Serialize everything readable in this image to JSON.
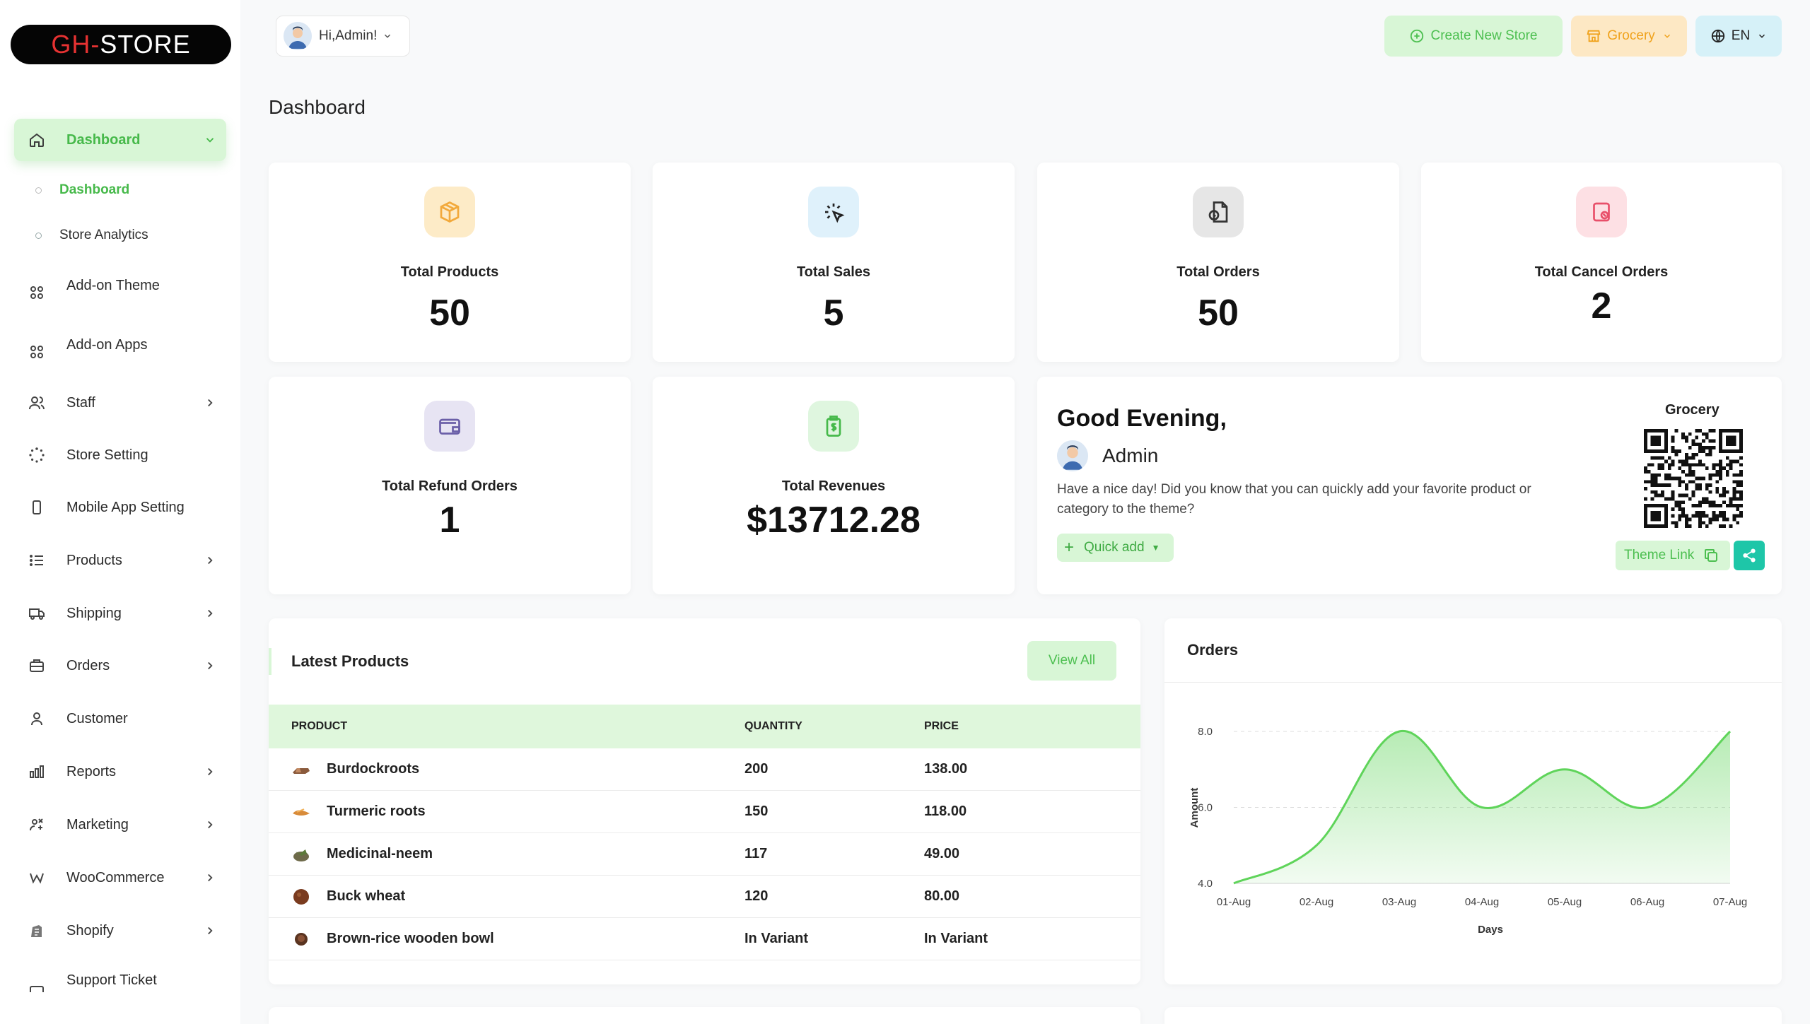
{
  "logo": {
    "part1": "GH-",
    "part2": "STORE"
  },
  "sidebar": {
    "active": "Dashboard",
    "sub_items": [
      {
        "label": "Dashboard",
        "active": true
      },
      {
        "label": "Store Analytics",
        "active": false
      }
    ],
    "items": [
      {
        "label": "Dashboard",
        "icon": "home-icon"
      },
      {
        "label": "Add-on Theme",
        "icon": "grid-icon"
      },
      {
        "label": "Add-on Apps",
        "icon": "grid-icon"
      },
      {
        "label": "Staff",
        "icon": "users-icon"
      },
      {
        "label": "Store Setting",
        "icon": "loader-icon"
      },
      {
        "label": "Mobile App Setting",
        "icon": "mobile-icon"
      },
      {
        "label": "Products",
        "icon": "list-icon"
      },
      {
        "label": "Shipping",
        "icon": "truck-icon"
      },
      {
        "label": "Orders",
        "icon": "briefcase-icon"
      },
      {
        "label": "Customer",
        "icon": "user-icon"
      },
      {
        "label": "Reports",
        "icon": "bar-chart-icon"
      },
      {
        "label": "Marketing",
        "icon": "marketing-icon"
      },
      {
        "label": "WooCommerce",
        "icon": "woocommerce-icon"
      },
      {
        "label": "Shopify",
        "icon": "shopify-icon"
      },
      {
        "label": "Support Ticket",
        "icon": "ticket-icon"
      }
    ]
  },
  "header": {
    "greeting": "Hi,Admin!",
    "create_store": "Create New Store",
    "store_select": "Grocery",
    "language": "EN"
  },
  "page": {
    "title": "Dashboard"
  },
  "stats": [
    {
      "label": "Total Products",
      "value": "50",
      "icon": "box-icon",
      "color": "#fdebc7"
    },
    {
      "label": "Total Sales",
      "value": "5",
      "icon": "click-icon",
      "color": "#dff1fb"
    },
    {
      "label": "Total Orders",
      "value": "50",
      "icon": "order-doc-icon",
      "color": "#e6e6e6"
    },
    {
      "label": "Total Cancel Orders",
      "value": "2",
      "icon": "cancel-doc-icon",
      "color": "#fde0e4"
    },
    {
      "label": "Total Refund Orders",
      "value": "1",
      "icon": "wallet-icon",
      "color": "#e7e4f3"
    },
    {
      "label": "Total Revenues",
      "value": "$13712.28",
      "icon": "revenue-icon",
      "color": "#dff6df"
    }
  ],
  "welcome": {
    "greeting": "Good Evening,",
    "name": "Admin",
    "message": "Have a nice day! Did you know that you can quickly add your favorite product or category to the theme?",
    "quick_add": "Quick add",
    "store_name": "Grocery",
    "theme_link": "Theme Link"
  },
  "latest_products": {
    "title": "Latest Products",
    "view_all": "View All",
    "columns": [
      "PRODUCT",
      "QUANTITY",
      "PRICE"
    ],
    "rows": [
      {
        "product": "Burdockroots",
        "quantity": "200",
        "price": "138.00",
        "thumb": "#8a5a3c"
      },
      {
        "product": "Turmeric roots",
        "quantity": "150",
        "price": "118.00",
        "thumb": "#d88b3a"
      },
      {
        "product": "Medicinal-neem",
        "quantity": "117",
        "price": "49.00",
        "thumb": "#6e6a4a"
      },
      {
        "product": "Buck wheat",
        "quantity": "120",
        "price": "80.00",
        "thumb": "#7a3b1f"
      },
      {
        "product": "Brown-rice wooden bowl",
        "quantity": "In Variant",
        "price": "In Variant",
        "thumb": "#5a3420"
      }
    ]
  },
  "orders_chart": {
    "title": "Orders",
    "chart_data": {
      "type": "area",
      "x": [
        "01-Aug",
        "02-Aug",
        "03-Aug",
        "04-Aug",
        "05-Aug",
        "06-Aug",
        "07-Aug"
      ],
      "series": [
        {
          "values": [
            4.0,
            5.0,
            8.0,
            6.0,
            7.0,
            6.0,
            8.0
          ]
        }
      ],
      "xlabel": "Days",
      "ylabel": "Amount",
      "yticks": [
        "4.0",
        "6.0",
        "8.0"
      ],
      "ylim": [
        4.0,
        8.0
      ],
      "color": "#5fd45a"
    }
  }
}
